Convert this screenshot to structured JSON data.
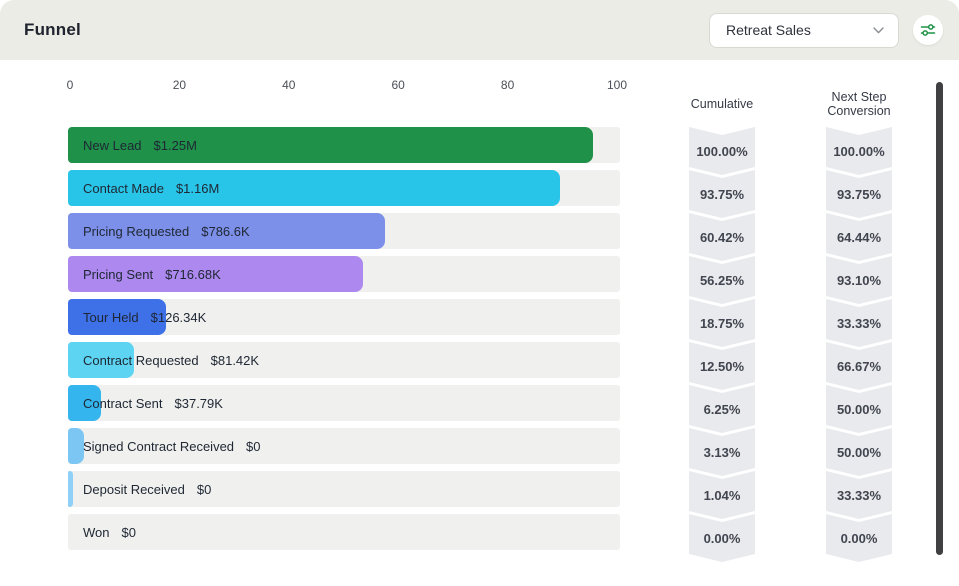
{
  "header": {
    "title": "Funnel",
    "selector": {
      "value": "Retreat Sales",
      "icon": "chevron-down-icon"
    },
    "filter_button_icon": "sliders-icon",
    "accent_green": "#1e9247"
  },
  "chart_data": {
    "type": "bar",
    "orientation": "horizontal",
    "title": "Funnel",
    "selected_pipeline": "Retreat Sales",
    "x_axis": {
      "ticks": [
        0,
        20,
        40,
        60,
        80,
        100
      ],
      "min": 0,
      "max": 100
    },
    "columns": {
      "cumulative": "Cumulative",
      "next_step": "Next Step Conversion"
    },
    "track_color": "#f0f0ee",
    "badge_color": "#e9eaed",
    "stages": [
      {
        "label": "New Lead",
        "amount": "$1.25M",
        "count": 96,
        "color": "#1f9149",
        "cumulative": "100.00%",
        "next_step_conversion": "100.00%"
      },
      {
        "label": "Contact Made",
        "amount": "$1.16M",
        "count": 90,
        "color": "#29c5e8",
        "cumulative": "93.75%",
        "next_step_conversion": "93.75%"
      },
      {
        "label": "Pricing Requested",
        "amount": "$786.6K",
        "count": 58,
        "color": "#7d90e9",
        "cumulative": "60.42%",
        "next_step_conversion": "64.44%"
      },
      {
        "label": "Pricing Sent",
        "amount": "$716.68K",
        "count": 54,
        "color": "#ad89ef",
        "cumulative": "56.25%",
        "next_step_conversion": "93.10%"
      },
      {
        "label": "Tour Held",
        "amount": "$126.34K",
        "count": 18,
        "color": "#3e70e8",
        "cumulative": "18.75%",
        "next_step_conversion": "33.33%"
      },
      {
        "label": "Contract Requested",
        "amount": "$81.42K",
        "count": 12,
        "color": "#5cd4f2",
        "cumulative": "12.50%",
        "next_step_conversion": "66.67%"
      },
      {
        "label": "Contract Sent",
        "amount": "$37.79K",
        "count": 6,
        "color": "#35b5ee",
        "cumulative": "6.25%",
        "next_step_conversion": "50.00%"
      },
      {
        "label": "Signed Contract Received",
        "amount": "$0",
        "count": 3,
        "color": "#7cc6f4",
        "cumulative": "3.13%",
        "next_step_conversion": "50.00%"
      },
      {
        "label": "Deposit Received",
        "amount": "$0",
        "count": 1,
        "color": "#8ed0f7",
        "cumulative": "1.04%",
        "next_step_conversion": "33.33%"
      },
      {
        "label": "Won",
        "amount": "$0",
        "count": 0,
        "color": "#8ed0f7",
        "cumulative": "0.00%",
        "next_step_conversion": "0.00%"
      }
    ]
  }
}
